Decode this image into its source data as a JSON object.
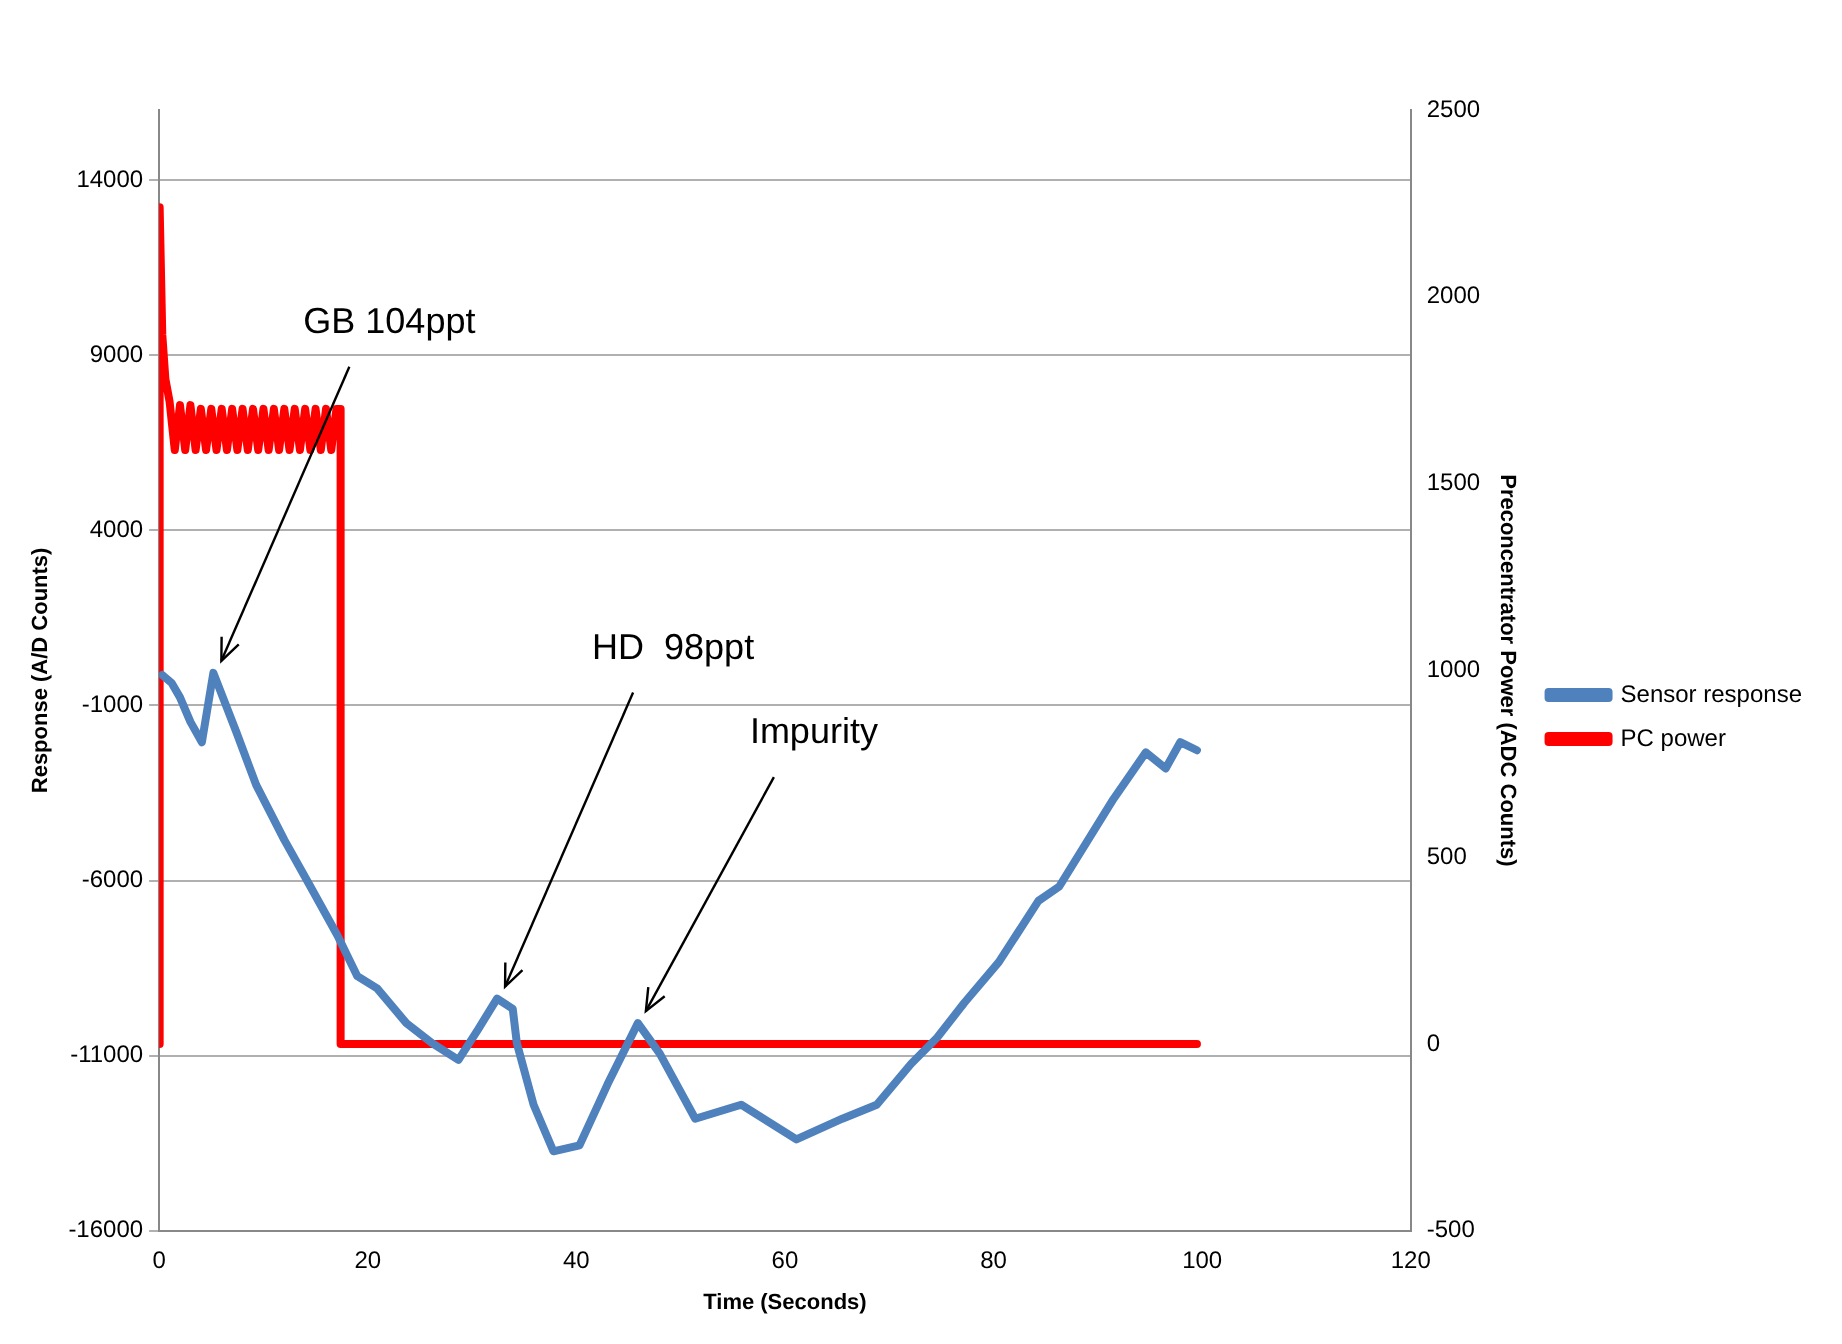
{
  "chart_data": {
    "type": "line",
    "xlabel": "Time (Seconds)",
    "ylabel": "Response (A/D Counts)",
    "y2label": "Preconcentrator Power (ADC Counts)",
    "xlim": [
      0,
      120
    ],
    "xticks": [
      0,
      20,
      40,
      60,
      80,
      100,
      120
    ],
    "ylim": [
      -16000,
      16000
    ],
    "yticks": [
      -16000,
      -11000,
      -6000,
      -1000,
      4000,
      9000,
      14000
    ],
    "y2lim": [
      -500,
      2500
    ],
    "y2ticks": [
      -500,
      0,
      500,
      1000,
      1500,
      2000,
      2500
    ],
    "grid": "y",
    "legend": "right",
    "marker": "none",
    "line_style": "solid",
    "series": [
      {
        "name": "Sensor response",
        "color": "#4f81bd",
        "x": [
          0.3,
          1.2,
          2,
          3,
          4.1,
          5.2,
          7.4,
          9.3,
          12,
          14.5,
          17.1,
          19,
          20.9,
          23.7,
          26.2,
          28.7,
          30.6,
          32.4,
          33.9,
          34.3,
          35.9,
          37.8,
          40.3,
          43,
          45.9,
          48,
          51.4,
          55.8,
          61.1,
          65.5,
          68.8,
          72.1,
          74.6,
          77.2,
          80.5,
          84.3,
          86.3,
          91.5,
          94.6,
          96.5,
          97.9,
          99.5
        ],
        "values": [
          -130,
          -360,
          -770,
          -1470,
          -2050,
          -70,
          -1760,
          -3270,
          -4840,
          -6170,
          -7570,
          -8730,
          -9080,
          -10070,
          -10650,
          -11120,
          -10240,
          -9370,
          -9660,
          -10650,
          -12400,
          -13730,
          -13560,
          -11810,
          -10070,
          -10940,
          -12800,
          -12400,
          -13390,
          -12800,
          -12400,
          -11230,
          -10480,
          -9490,
          -8330,
          -6580,
          -6170,
          -3670,
          -2340,
          -2800,
          -2050,
          -2280
        ]
      },
      {
        "name": "PC power",
        "color": "#ff0000",
        "axis": "y2",
        "x": [
          0,
          0.05,
          0.3,
          0.6,
          1,
          1.5,
          2,
          2.5,
          3,
          3.5,
          4,
          4.5,
          5,
          5.5,
          6,
          6.5,
          7,
          7.5,
          8,
          8.5,
          9,
          9.5,
          10,
          10.5,
          11,
          11.5,
          12,
          12.5,
          13,
          13.5,
          14,
          14.5,
          15,
          15.5,
          16,
          16.5,
          17,
          17.4,
          17.4,
          99.5
        ],
        "values": [
          0,
          2240,
          1900,
          1780,
          1720,
          1590,
          1710,
          1590,
          1710,
          1590,
          1700,
          1590,
          1700,
          1590,
          1700,
          1590,
          1700,
          1590,
          1700,
          1590,
          1700,
          1590,
          1700,
          1590,
          1700,
          1590,
          1700,
          1590,
          1700,
          1590,
          1700,
          1590,
          1700,
          1590,
          1700,
          1590,
          1700,
          1700,
          0,
          0
        ]
      }
    ],
    "annotations": [
      {
        "text": "GB 104ppt",
        "x": 5.2,
        "y": -70
      },
      {
        "text": "HD  98ppt",
        "x": 32.4,
        "y": -9370
      },
      {
        "text": "Impurity",
        "x": 45.9,
        "y": -10070
      }
    ]
  }
}
